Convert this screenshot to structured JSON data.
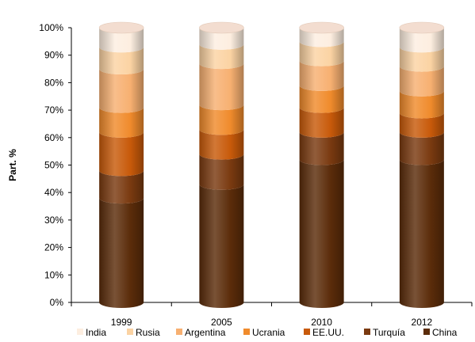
{
  "chart_data": {
    "type": "bar",
    "stacked": true,
    "percent": true,
    "categories": [
      "1999",
      "2005",
      "2010",
      "2012"
    ],
    "series": [
      {
        "name": "China",
        "values": [
          38,
          43,
          52,
          52
        ],
        "color": "#5b2c0a"
      },
      {
        "name": "Turquía",
        "values": [
          10,
          11,
          10,
          10
        ],
        "color": "#7a3a10"
      },
      {
        "name": "EE.UU.",
        "values": [
          14,
          9,
          9,
          7
        ],
        "color": "#c85a0a"
      },
      {
        "name": "Ucrania",
        "values": [
          9,
          9,
          8,
          8
        ],
        "color": "#f08b2c"
      },
      {
        "name": "Argentina",
        "values": [
          14,
          15,
          9,
          9
        ],
        "color": "#f7b071"
      },
      {
        "name": "Rusia",
        "values": [
          8,
          7,
          7,
          7
        ],
        "color": "#fbd3a3"
      },
      {
        "name": "India",
        "values": [
          7,
          6,
          5,
          7
        ],
        "color": "#fdeee0"
      }
    ],
    "ylabel": "Part. %",
    "ylim": [
      0,
      100
    ],
    "yticks": [
      "0%",
      "10%",
      "20%",
      "30%",
      "40%",
      "50%",
      "60%",
      "70%",
      "80%",
      "90%",
      "100%"
    ],
    "legend_position": "bottom",
    "legend_order": [
      "India",
      "Rusia",
      "Argentina",
      "Ucrania",
      "EE.UU.",
      "Turquía",
      "China"
    ],
    "grid": false
  }
}
